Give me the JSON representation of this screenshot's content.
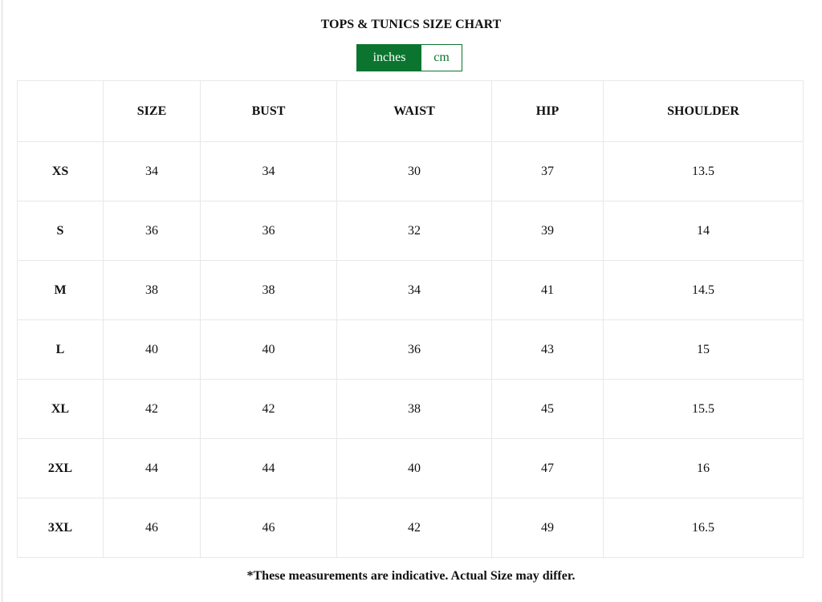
{
  "title": "TOPS & TUNICS SIZE CHART",
  "units": {
    "active": "inches",
    "options": [
      "inches",
      "cm"
    ]
  },
  "accent": "#0b7530",
  "table": {
    "headers": [
      "",
      "SIZE",
      "BUST",
      "WAIST",
      "HIP",
      "SHOULDER"
    ],
    "rows": [
      [
        "XS",
        "34",
        "34",
        "30",
        "37",
        "13.5"
      ],
      [
        "S",
        "36",
        "36",
        "32",
        "39",
        "14"
      ],
      [
        "M",
        "38",
        "38",
        "34",
        "41",
        "14.5"
      ],
      [
        "L",
        "40",
        "40",
        "36",
        "43",
        "15"
      ],
      [
        "XL",
        "42",
        "42",
        "38",
        "45",
        "15.5"
      ],
      [
        "2XL",
        "44",
        "44",
        "40",
        "47",
        "16"
      ],
      [
        "3XL",
        "46",
        "46",
        "42",
        "49",
        "16.5"
      ]
    ]
  },
  "note": "*These measurements are indicative. Actual Size may differ."
}
